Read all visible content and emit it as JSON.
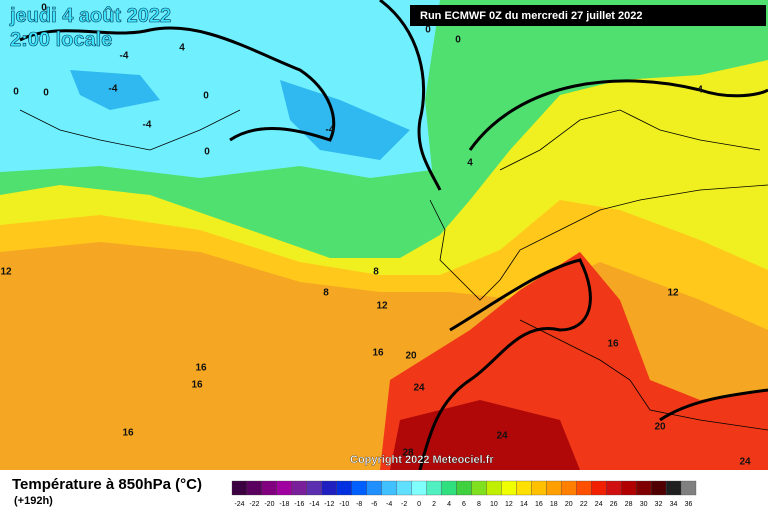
{
  "header": {
    "date": "jeudi 4 août 2022",
    "time": "2:00 locale",
    "run": "Run ECMWF 0Z du mercredi 27 juillet 2022"
  },
  "footer": {
    "title": "Température à 850hPa (°C)",
    "lead": "(+192h)",
    "copyright": "Copyright 2022 Meteociel.fr"
  },
  "legend": {
    "labels": [
      -24,
      -22,
      -20,
      -18,
      -16,
      -14,
      -12,
      -10,
      -8,
      -6,
      -4,
      -2,
      0,
      2,
      4,
      6,
      8,
      10,
      12,
      14,
      16,
      18,
      20,
      22,
      24,
      26,
      28,
      30,
      32,
      34,
      36
    ],
    "colors": [
      "#3b0040",
      "#5a005f",
      "#80007f",
      "#a000a0",
      "#7a1f9a",
      "#5a2fb0",
      "#2020c0",
      "#0030e0",
      "#0060ff",
      "#2090ff",
      "#40c0ff",
      "#60e0ff",
      "#80ffff",
      "#50f0c0",
      "#30e080",
      "#40d040",
      "#80e020",
      "#c0f000",
      "#f0ff00",
      "#ffe000",
      "#ffc000",
      "#ffa000",
      "#ff8000",
      "#ff5000",
      "#f02000",
      "#d01010",
      "#b00000",
      "#800000",
      "#500000",
      "#202020",
      "#808080"
    ]
  },
  "map_labels": [
    "0",
    "0",
    "0",
    "4",
    "-4",
    "0",
    "0",
    "-4",
    "0",
    "-4",
    "-4",
    "0",
    "4",
    "4",
    "12",
    "8",
    "8",
    "12",
    "12",
    "16",
    "20",
    "16",
    "16",
    "24",
    "16",
    "16",
    "24",
    "20",
    "28",
    "24"
  ]
}
